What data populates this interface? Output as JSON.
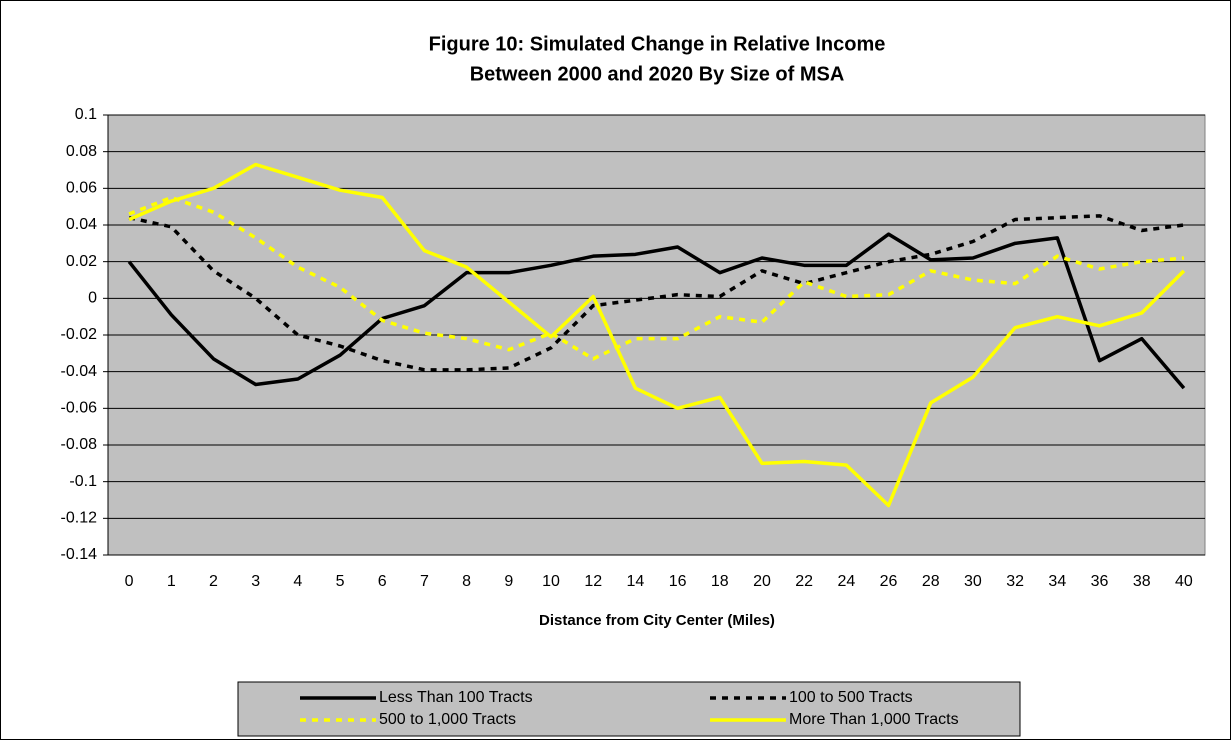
{
  "chart_data": {
    "type": "line",
    "title": [
      "Figure 10: Simulated Change in Relative Income",
      "Between 2000 and 2020 By Size of MSA"
    ],
    "x_label": "Distance from City Center (Miles)",
    "categories": [
      "0",
      "1",
      "2",
      "3",
      "4",
      "5",
      "6",
      "7",
      "8",
      "9",
      "10",
      "12",
      "14",
      "16",
      "18",
      "20",
      "22",
      "24",
      "26",
      "28",
      "30",
      "32",
      "34",
      "36",
      "38",
      "40"
    ],
    "ylim": [
      -0.14,
      0.1
    ],
    "yticks": [
      -0.14,
      -0.12,
      -0.1,
      -0.08,
      -0.06,
      -0.04,
      -0.02,
      0,
      0.02,
      0.04,
      0.06,
      0.08,
      0.1
    ],
    "grid": true,
    "legend_position": "bottom",
    "series": [
      {
        "name": "Less Than 100 Tracts",
        "color": "#000000",
        "style": "solid",
        "values": [
          0.02,
          -0.009,
          -0.033,
          -0.047,
          -0.044,
          -0.031,
          -0.011,
          -0.004,
          0.014,
          0.014,
          0.018,
          0.023,
          0.024,
          0.028,
          0.014,
          0.022,
          0.018,
          0.018,
          0.035,
          0.021,
          0.022,
          0.03,
          0.033,
          -0.034,
          -0.022,
          -0.049
        ]
      },
      {
        "name": "100 to 500 Tracts",
        "color": "#000000",
        "style": "dashed",
        "values": [
          0.044,
          0.039,
          0.015,
          0.0,
          -0.02,
          -0.026,
          -0.034,
          -0.039,
          -0.039,
          -0.038,
          -0.027,
          -0.004,
          -0.001,
          0.002,
          0.001,
          0.015,
          0.008,
          0.014,
          0.02,
          0.024,
          0.031,
          0.043,
          0.044,
          0.045,
          0.037,
          0.04
        ]
      },
      {
        "name": "500 to 1,000 Tracts",
        "color": "#ffff00",
        "style": "dashed",
        "values": [
          0.046,
          0.055,
          0.047,
          0.033,
          0.017,
          0.006,
          -0.012,
          -0.019,
          -0.022,
          -0.028,
          -0.019,
          -0.033,
          -0.022,
          -0.022,
          -0.01,
          -0.013,
          0.009,
          0.001,
          0.002,
          0.015,
          0.01,
          0.008,
          0.023,
          0.016,
          0.02,
          0.022
        ]
      },
      {
        "name": "More Than 1,000 Tracts",
        "color": "#ffff00",
        "style": "solid",
        "values": [
          0.043,
          0.053,
          0.06,
          0.073,
          0.066,
          0.059,
          0.055,
          0.026,
          0.017,
          -0.002,
          -0.021,
          0.001,
          -0.049,
          -0.06,
          -0.054,
          -0.09,
          -0.089,
          -0.091,
          -0.113,
          -0.057,
          -0.043,
          -0.016,
          -0.01,
          -0.015,
          -0.008,
          0.015
        ]
      }
    ]
  }
}
